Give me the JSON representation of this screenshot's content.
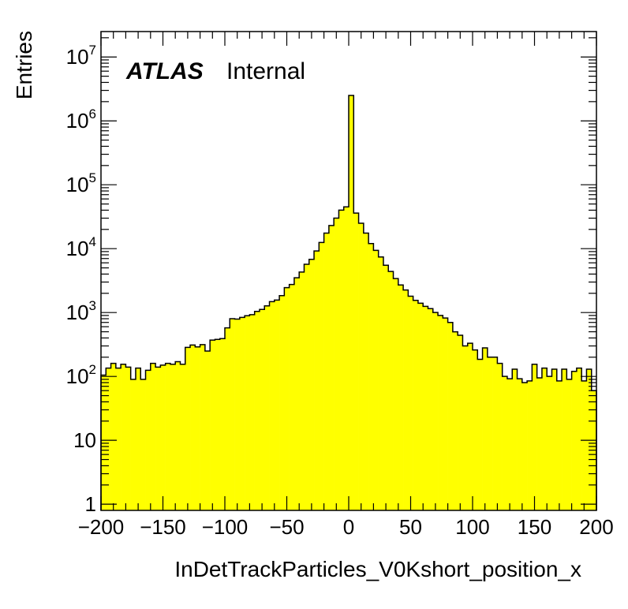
{
  "chart_data": {
    "type": "histogram",
    "x_title": "InDetTrackParticles_V0Kshort_position_x",
    "y_title": "Entries",
    "label": {
      "experiment": "ATLAS",
      "status": "Internal"
    },
    "xlim": [
      -200,
      200
    ],
    "ylim": [
      0.8,
      25000000
    ],
    "y_scale": "log",
    "fill_color": "#ffff00",
    "line_color": "#000000",
    "x_ticks": [
      "−200",
      "−150",
      "−100",
      "−50",
      "0",
      "50",
      "100",
      "150",
      "200"
    ],
    "x_tick_values": [
      -200,
      -150,
      -100,
      -50,
      0,
      50,
      100,
      150,
      200
    ],
    "y_ticks": [
      {
        "value": 1,
        "base": "1",
        "exp": ""
      },
      {
        "value": 10,
        "base": "10",
        "exp": ""
      },
      {
        "value": 100,
        "base": "10",
        "exp": "2"
      },
      {
        "value": 1000,
        "base": "10",
        "exp": "3"
      },
      {
        "value": 10000,
        "base": "10",
        "exp": "4"
      },
      {
        "value": 100000,
        "base": "10",
        "exp": "5"
      },
      {
        "value": 1000000,
        "base": "10",
        "exp": "6"
      },
      {
        "value": 10000000,
        "base": "10",
        "exp": "7"
      }
    ],
    "bin_width": 4,
    "bins_x_low": [
      -200,
      -196,
      -192,
      -188,
      -184,
      -180,
      -176,
      -172,
      -168,
      -164,
      -160,
      -156,
      -152,
      -148,
      -144,
      -140,
      -136,
      -132,
      -128,
      -124,
      -120,
      -116,
      -112,
      -108,
      -104,
      -100,
      -96,
      -92,
      -88,
      -84,
      -80,
      -76,
      -72,
      -68,
      -64,
      -60,
      -56,
      -52,
      -48,
      -44,
      -40,
      -36,
      -32,
      -28,
      -24,
      -20,
      -16,
      -12,
      -8,
      -4,
      0,
      4,
      8,
      12,
      16,
      20,
      24,
      28,
      32,
      36,
      40,
      44,
      48,
      52,
      56,
      60,
      64,
      68,
      72,
      76,
      80,
      84,
      88,
      92,
      96,
      100,
      104,
      108,
      112,
      116,
      120,
      124,
      128,
      132,
      136,
      140,
      144,
      148,
      152,
      156,
      160,
      164,
      168,
      172,
      176,
      180,
      184,
      188,
      192,
      196
    ],
    "values": [
      105,
      135,
      160,
      135,
      155,
      140,
      90,
      135,
      90,
      125,
      160,
      140,
      150,
      160,
      155,
      170,
      155,
      285,
      310,
      290,
      315,
      250,
      370,
      380,
      390,
      575,
      800,
      790,
      840,
      890,
      925,
      1040,
      1120,
      1270,
      1480,
      1570,
      1840,
      2450,
      2750,
      3500,
      4300,
      5700,
      6800,
      9200,
      12500,
      17500,
      23000,
      30000,
      40000,
      45000,
      2500000,
      36000,
      25000,
      17500,
      12000,
      9400,
      7400,
      5500,
      4400,
      3400,
      2700,
      2250,
      1800,
      1550,
      1400,
      1250,
      1150,
      1000,
      900,
      820,
      700,
      500,
      440,
      300,
      330,
      260,
      185,
      280,
      200,
      200,
      160,
      100,
      92,
      130,
      92,
      80,
      85,
      155,
      95,
      135,
      100,
      130,
      85,
      130,
      90,
      120,
      135,
      85,
      130,
      60
    ]
  }
}
